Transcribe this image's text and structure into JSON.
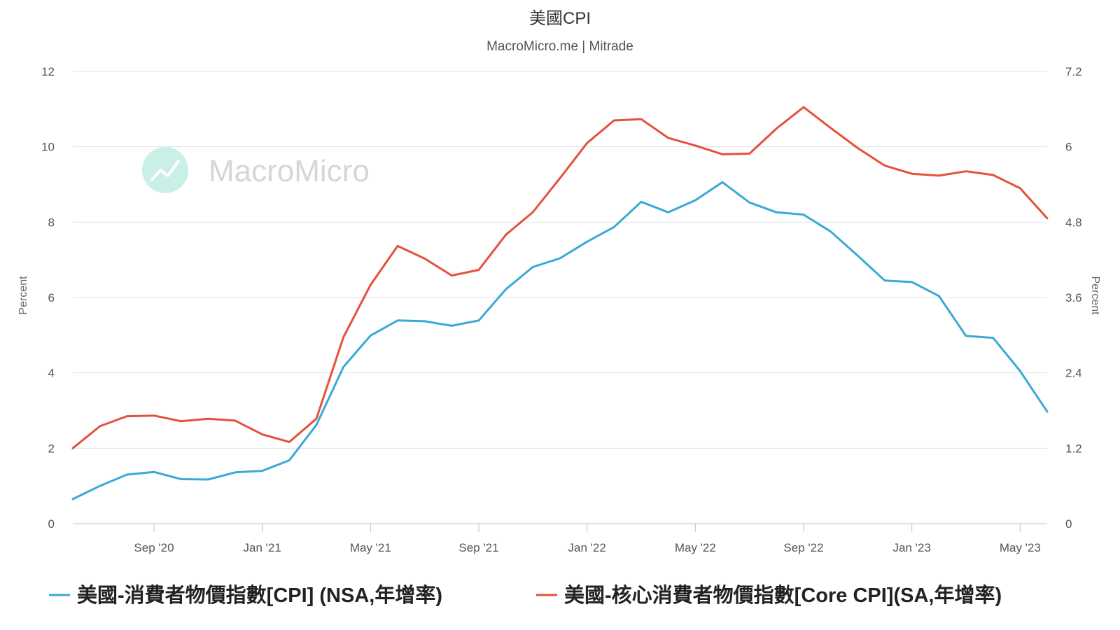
{
  "chart_data": {
    "type": "line",
    "title": "美國CPI",
    "subtitle": "MacroMicro.me | Mitrade",
    "watermark": "MacroMicro",
    "left_axis": {
      "label": "Percent",
      "range": [
        0,
        12
      ],
      "ticks": [
        "0",
        "2",
        "4",
        "6",
        "8",
        "10",
        "12"
      ]
    },
    "right_axis": {
      "label": "Percent",
      "range": [
        0,
        7.2
      ],
      "ticks": [
        "0",
        "1.2",
        "2.4",
        "3.6",
        "4.8",
        "6",
        "7.2"
      ]
    },
    "x_range": [
      "2020-06",
      "2023-06"
    ],
    "x_ticks": [
      {
        "label": "Sep '20",
        "month": "2020-09"
      },
      {
        "label": "Jan '21",
        "month": "2021-01"
      },
      {
        "label": "May '21",
        "month": "2021-05"
      },
      {
        "label": "Sep '21",
        "month": "2021-09"
      },
      {
        "label": "Jan '22",
        "month": "2022-01"
      },
      {
        "label": "May '22",
        "month": "2022-05"
      },
      {
        "label": "Sep '22",
        "month": "2022-09"
      },
      {
        "label": "Jan '23",
        "month": "2023-01"
      },
      {
        "label": "May '23",
        "month": "2023-05"
      }
    ],
    "grid": true,
    "legend_position": "bottom",
    "x": [
      "2020-06",
      "2020-07",
      "2020-08",
      "2020-09",
      "2020-10",
      "2020-11",
      "2020-12",
      "2021-01",
      "2021-02",
      "2021-03",
      "2021-04",
      "2021-05",
      "2021-06",
      "2021-07",
      "2021-08",
      "2021-09",
      "2021-10",
      "2021-11",
      "2021-12",
      "2022-01",
      "2022-02",
      "2022-03",
      "2022-04",
      "2022-05",
      "2022-06",
      "2022-07",
      "2022-08",
      "2022-09",
      "2022-10",
      "2022-11",
      "2022-12",
      "2023-01",
      "2023-02",
      "2023-03",
      "2023-04",
      "2023-05",
      "2023-06"
    ],
    "series": [
      {
        "name": "美國-消費者物價指數[CPI] (NSA,年增率)",
        "axis": "left",
        "color": "#3aa9d8",
        "values": [
          0.65,
          1.0,
          1.3,
          1.37,
          1.18,
          1.17,
          1.36,
          1.4,
          1.68,
          2.62,
          4.16,
          4.99,
          5.39,
          5.37,
          5.25,
          5.39,
          6.22,
          6.81,
          7.04,
          7.48,
          7.87,
          8.54,
          8.26,
          8.58,
          9.06,
          8.52,
          8.26,
          8.2,
          7.75,
          7.11,
          6.45,
          6.41,
          6.04,
          4.98,
          4.93,
          4.05,
          2.97
        ]
      },
      {
        "name": "美國-核心消費者物價指數[Core CPI](SA,年增率)",
        "axis": "right",
        "color": "#e4513a",
        "values": [
          1.2,
          1.55,
          1.71,
          1.72,
          1.63,
          1.67,
          1.64,
          1.42,
          1.3,
          1.67,
          2.97,
          3.8,
          4.42,
          4.22,
          3.95,
          4.04,
          4.6,
          4.96,
          5.5,
          6.06,
          6.42,
          6.44,
          6.14,
          6.02,
          5.88,
          5.89,
          6.29,
          6.63,
          6.3,
          5.98,
          5.7,
          5.57,
          5.54,
          5.61,
          5.55,
          5.34,
          4.86
        ]
      }
    ]
  }
}
